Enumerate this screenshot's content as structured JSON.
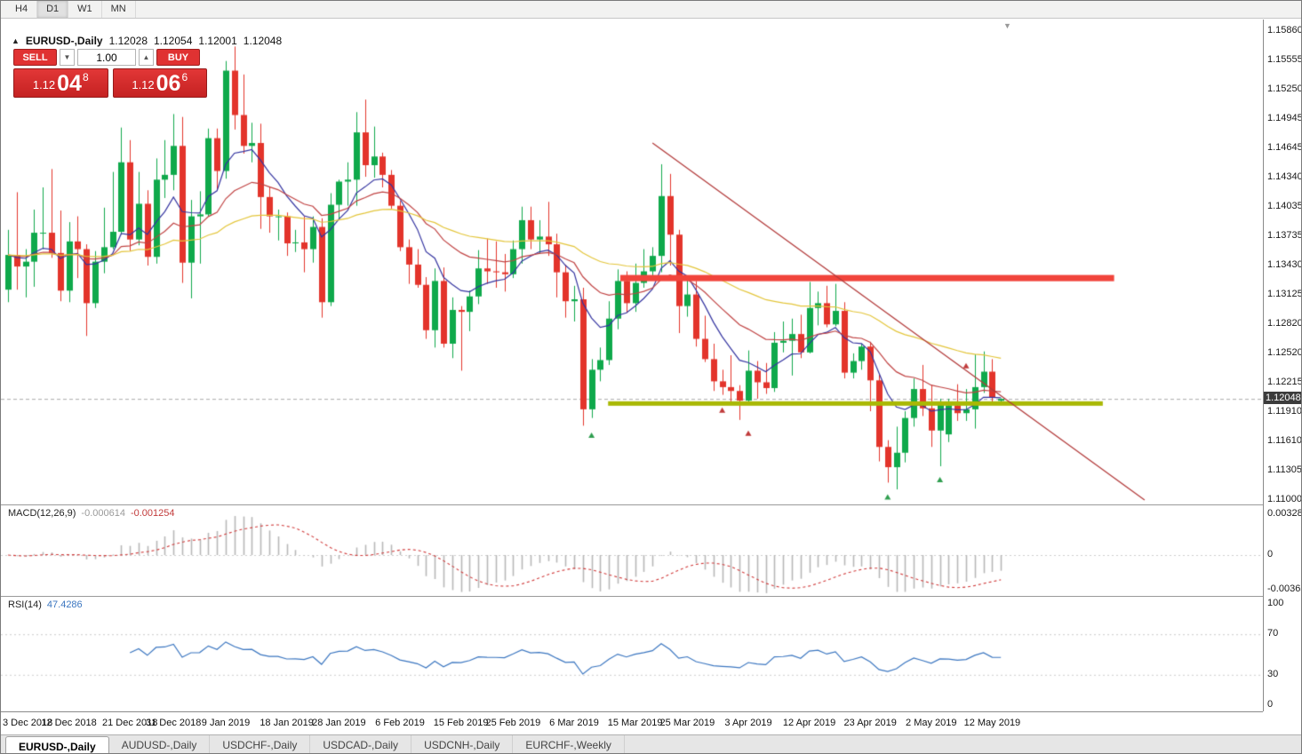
{
  "icons": {
    "collapse": "▲",
    "spinner_down": "▼",
    "spinner_up": "▲",
    "shift_marker": "▼"
  },
  "toolbar": {
    "timeframes": [
      "H4",
      "D1",
      "W1",
      "MN"
    ],
    "active": "D1"
  },
  "chart_header": {
    "symbol": "EURUSD-,Daily",
    "open": "1.12028",
    "high": "1.12054",
    "low": "1.12001",
    "close": "1.12048"
  },
  "trade_panel": {
    "sell_label": "SELL",
    "buy_label": "BUY",
    "volume": "1.00",
    "sell_price": {
      "big": "1.12",
      "mid": "04",
      "sup": "8"
    },
    "buy_price": {
      "big": "1.12",
      "mid": "06",
      "sup": "6"
    }
  },
  "price_axis": {
    "labels": [
      "1.15860",
      "1.15555",
      "1.15250",
      "1.14945",
      "1.14645",
      "1.14340",
      "1.14035",
      "1.13735",
      "1.13430",
      "1.13125",
      "1.12820",
      "1.12520",
      "1.12215",
      "1.11910",
      "1.11610",
      "1.11305",
      "1.11000"
    ],
    "current": "1.12048"
  },
  "date_axis": [
    {
      "label": "3 Dec 2018",
      "i": 0
    },
    {
      "label": "12 Dec 2018",
      "i": 7
    },
    {
      "label": "21 Dec 2018",
      "i": 14
    },
    {
      "label": "31 Dec 2018",
      "i": 19
    },
    {
      "label": "9 Jan 2019",
      "i": 25
    },
    {
      "label": "18 Jan 2019",
      "i": 32
    },
    {
      "label": "28 Jan 2019",
      "i": 38
    },
    {
      "label": "6 Feb 2019",
      "i": 45
    },
    {
      "label": "15 Feb 2019",
      "i": 52
    },
    {
      "label": "25 Feb 2019",
      "i": 58
    },
    {
      "label": "6 Mar 2019",
      "i": 65
    },
    {
      "label": "15 Mar 2019",
      "i": 72
    },
    {
      "label": "25 Mar 2019",
      "i": 78
    },
    {
      "label": "3 Apr 2019",
      "i": 85
    },
    {
      "label": "12 Apr 2019",
      "i": 92
    },
    {
      "label": "23 Apr 2019",
      "i": 99
    },
    {
      "label": "2 May 2019",
      "i": 106
    },
    {
      "label": "12 May 2019",
      "i": 113
    }
  ],
  "macd_panel": {
    "title": "MACD(12,26,9)",
    "value_main": "-0.000614",
    "value_signal": "-0.001254",
    "axis": [
      "0.003287",
      "0",
      "-0.003652"
    ]
  },
  "rsi_panel": {
    "title": "RSI(14)",
    "value": "47.4286",
    "axis": [
      "100",
      "70",
      "30",
      "0"
    ]
  },
  "symbol_tabs": [
    "EURUSD-,Daily",
    "AUDUSD-,Daily",
    "USDCHF-,Daily",
    "USDCAD-,Daily",
    "USDCNH-,Daily",
    "EURCHF-,Weekly"
  ],
  "active_tab_index": 0,
  "chart_data": {
    "type": "candlestick",
    "symbol": "EURUSD",
    "timeframe": "Daily",
    "price_range": [
      1.11,
      1.1586
    ],
    "colors": {
      "bull": "#0fa94b",
      "bear": "#e3342b",
      "ma_fast": "#3434a0",
      "ma_mid": "#c04343",
      "ma_slow": "#e3c53a",
      "bid_line": "#a8a8a8",
      "macd_histogram": "#b8b8b8",
      "macd_signal": "#d03a3a",
      "rsi_line": "#3b76c0",
      "grid_dotted": "#cccccc"
    },
    "candles": [
      [
        1.1318,
        1.138,
        1.1305,
        1.1354
      ],
      [
        1.1354,
        1.1419,
        1.1318,
        1.1342
      ],
      [
        1.1342,
        1.136,
        1.131,
        1.1347
      ],
      [
        1.1347,
        1.1401,
        1.1321,
        1.1377
      ],
      [
        1.1377,
        1.1424,
        1.136,
        1.1377
      ],
      [
        1.1377,
        1.1443,
        1.1351,
        1.1356
      ],
      [
        1.1356,
        1.14,
        1.1306,
        1.1317
      ],
      [
        1.1317,
        1.1388,
        1.1305,
        1.1368
      ],
      [
        1.1368,
        1.1394,
        1.133,
        1.136
      ],
      [
        1.136,
        1.1365,
        1.127,
        1.1304
      ],
      [
        1.1304,
        1.1358,
        1.1299,
        1.1347
      ],
      [
        1.1347,
        1.1403,
        1.1335,
        1.1362
      ],
      [
        1.1362,
        1.144,
        1.136,
        1.1378
      ],
      [
        1.1378,
        1.1486,
        1.1375,
        1.145
      ],
      [
        1.145,
        1.1473,
        1.1358,
        1.137
      ],
      [
        1.137,
        1.144,
        1.1364,
        1.1407
      ],
      [
        1.1407,
        1.1421,
        1.1343,
        1.1352
      ],
      [
        1.1352,
        1.1454,
        1.1345,
        1.1432
      ],
      [
        1.1432,
        1.1473,
        1.1413,
        1.1437
      ],
      [
        1.1437,
        1.15,
        1.1421,
        1.1467
      ],
      [
        1.1467,
        1.1497,
        1.1325,
        1.1346
      ],
      [
        1.1346,
        1.1411,
        1.1309,
        1.1394
      ],
      [
        1.1394,
        1.142,
        1.1345,
        1.1396
      ],
      [
        1.1396,
        1.1485,
        1.1394,
        1.1475
      ],
      [
        1.1475,
        1.1485,
        1.1422,
        1.1441
      ],
      [
        1.1441,
        1.1555,
        1.1433,
        1.1545
      ],
      [
        1.1545,
        1.157,
        1.1484,
        1.1499
      ],
      [
        1.1499,
        1.1541,
        1.1459,
        1.1467
      ],
      [
        1.1467,
        1.1491,
        1.145,
        1.147
      ],
      [
        1.147,
        1.149,
        1.1381,
        1.1414
      ],
      [
        1.1414,
        1.1425,
        1.1377,
        1.1394
      ],
      [
        1.1394,
        1.1401,
        1.1369,
        1.1394
      ],
      [
        1.1394,
        1.1398,
        1.1353,
        1.1366
      ],
      [
        1.1366,
        1.138,
        1.1357,
        1.1367
      ],
      [
        1.1367,
        1.1394,
        1.1336,
        1.136
      ],
      [
        1.136,
        1.1394,
        1.1346,
        1.1383
      ],
      [
        1.1383,
        1.1392,
        1.1289,
        1.1305
      ],
      [
        1.1305,
        1.1418,
        1.1301,
        1.1406
      ],
      [
        1.1406,
        1.1432,
        1.139,
        1.143
      ],
      [
        1.143,
        1.145,
        1.1405,
        1.1432
      ],
      [
        1.1432,
        1.1502,
        1.1405,
        1.1481
      ],
      [
        1.1481,
        1.1515,
        1.1435,
        1.1447
      ],
      [
        1.1447,
        1.1487,
        1.1434,
        1.1456
      ],
      [
        1.1456,
        1.146,
        1.1424,
        1.1437
      ],
      [
        1.1437,
        1.1442,
        1.1402,
        1.1405
      ],
      [
        1.1405,
        1.141,
        1.1358,
        1.1362
      ],
      [
        1.1362,
        1.137,
        1.1324,
        1.1344
      ],
      [
        1.1344,
        1.136,
        1.132,
        1.1323
      ],
      [
        1.1323,
        1.1331,
        1.1267,
        1.1276
      ],
      [
        1.1276,
        1.134,
        1.1258,
        1.1327
      ],
      [
        1.1327,
        1.1341,
        1.1258,
        1.1262
      ],
      [
        1.1262,
        1.131,
        1.1247,
        1.1297
      ],
      [
        1.1297,
        1.1301,
        1.1234,
        1.1295
      ],
      [
        1.1295,
        1.1317,
        1.1275,
        1.1311
      ],
      [
        1.1311,
        1.1359,
        1.1303,
        1.134
      ],
      [
        1.134,
        1.1371,
        1.1324,
        1.1337
      ],
      [
        1.1337,
        1.1368,
        1.132,
        1.1336
      ],
      [
        1.1336,
        1.1355,
        1.1316,
        1.1334
      ],
      [
        1.1334,
        1.1369,
        1.133,
        1.136
      ],
      [
        1.136,
        1.1404,
        1.1345,
        1.139
      ],
      [
        1.139,
        1.1404,
        1.136,
        1.137
      ],
      [
        1.137,
        1.139,
        1.1355,
        1.1373
      ],
      [
        1.1373,
        1.1409,
        1.1353,
        1.1365
      ],
      [
        1.1365,
        1.1376,
        1.131,
        1.1336
      ],
      [
        1.1336,
        1.1344,
        1.1289,
        1.1306
      ],
      [
        1.1306,
        1.1322,
        1.1285,
        1.1308
      ],
      [
        1.1308,
        1.132,
        1.1177,
        1.1194
      ],
      [
        1.1194,
        1.1246,
        1.1185,
        1.1235
      ],
      [
        1.1235,
        1.1258,
        1.1223,
        1.1245
      ],
      [
        1.1245,
        1.1306,
        1.124,
        1.1288
      ],
      [
        1.1288,
        1.1339,
        1.1277,
        1.1327
      ],
      [
        1.1327,
        1.1337,
        1.1294,
        1.1304
      ],
      [
        1.1304,
        1.1345,
        1.1295,
        1.1325
      ],
      [
        1.1325,
        1.136,
        1.132,
        1.1337
      ],
      [
        1.1337,
        1.1362,
        1.1332,
        1.1353
      ],
      [
        1.1353,
        1.1448,
        1.1336,
        1.1415
      ],
      [
        1.1415,
        1.1438,
        1.1343,
        1.1375
      ],
      [
        1.1375,
        1.138,
        1.1273,
        1.1301
      ],
      [
        1.1301,
        1.133,
        1.129,
        1.1313
      ],
      [
        1.1313,
        1.1327,
        1.1259,
        1.1267
      ],
      [
        1.1267,
        1.1291,
        1.1243,
        1.1246
      ],
      [
        1.1246,
        1.1262,
        1.1213,
        1.1223
      ],
      [
        1.1223,
        1.1235,
        1.1209,
        1.1217
      ],
      [
        1.1217,
        1.125,
        1.1199,
        1.1213
      ],
      [
        1.1213,
        1.1219,
        1.1183,
        1.1203
      ],
      [
        1.1203,
        1.1255,
        1.12,
        1.1234
      ],
      [
        1.1234,
        1.1244,
        1.1205,
        1.1222
      ],
      [
        1.1222,
        1.1242,
        1.121,
        1.1216
      ],
      [
        1.1216,
        1.1274,
        1.1212,
        1.1263
      ],
      [
        1.1263,
        1.1285,
        1.1253,
        1.1265
      ],
      [
        1.1265,
        1.1288,
        1.1229,
        1.1272
      ],
      [
        1.1272,
        1.1292,
        1.1247,
        1.1253
      ],
      [
        1.1253,
        1.1326,
        1.1252,
        1.1299
      ],
      [
        1.1299,
        1.1316,
        1.1281,
        1.1304
      ],
      [
        1.1304,
        1.1322,
        1.1279,
        1.1282
      ],
      [
        1.1282,
        1.1324,
        1.128,
        1.1296
      ],
      [
        1.1296,
        1.1305,
        1.1226,
        1.1232
      ],
      [
        1.1232,
        1.1252,
        1.1226,
        1.1244
      ],
      [
        1.1244,
        1.1262,
        1.1235,
        1.1259
      ],
      [
        1.1259,
        1.1264,
        1.1192,
        1.1224
      ],
      [
        1.1224,
        1.123,
        1.114,
        1.1155
      ],
      [
        1.1155,
        1.1162,
        1.1118,
        1.1134
      ],
      [
        1.1134,
        1.1176,
        1.1111,
        1.1149
      ],
      [
        1.1149,
        1.1192,
        1.1139,
        1.1185
      ],
      [
        1.1185,
        1.1226,
        1.1176,
        1.1215
      ],
      [
        1.1215,
        1.124,
        1.1187,
        1.1195
      ],
      [
        1.1195,
        1.1219,
        1.1155,
        1.1172
      ],
      [
        1.1172,
        1.1205,
        1.1135,
        1.1199
      ],
      [
        1.1168,
        1.1205,
        1.116,
        1.1198
      ],
      [
        1.1198,
        1.122,
        1.1182,
        1.119
      ],
      [
        1.119,
        1.1215,
        1.1182,
        1.1194
      ],
      [
        1.1194,
        1.1251,
        1.1174,
        1.1217
      ],
      [
        1.1217,
        1.1254,
        1.1211,
        1.1233
      ],
      [
        1.1233,
        1.1246,
        1.12,
        1.1206
      ],
      [
        1.12028,
        1.12054,
        1.12001,
        1.12048
      ]
    ],
    "moving_averages": [
      {
        "period": 8,
        "color_key": "ma_fast"
      },
      {
        "period": 20,
        "color_key": "ma_mid"
      },
      {
        "period": 50,
        "color_key": "ma_slow"
      }
    ],
    "objects": {
      "trendline": {
        "i1": 74,
        "p1": 1.147,
        "i2": 130.5,
        "p2": 1.11,
        "color": "#b23a3a"
      },
      "resistance": {
        "i1": 70.3,
        "i2": 127,
        "price": 1.133,
        "color": "#f1443b",
        "thickness": 7
      },
      "support": {
        "i1": 68.9,
        "i2": 125.7,
        "price": 1.12,
        "color": "#a9b804",
        "thickness": 5
      }
    },
    "arrows": [
      {
        "i": 67,
        "p": 1.117,
        "color": "#2f9e4f"
      },
      {
        "i": 82,
        "p": 1.1196,
        "color": "#c03a3a"
      },
      {
        "i": 85,
        "p": 1.1172,
        "color": "#c03a3a"
      },
      {
        "i": 101,
        "p": 1.1106,
        "color": "#2f9e4f"
      },
      {
        "i": 107,
        "p": 1.1124,
        "color": "#2f9e4f"
      },
      {
        "i": 110,
        "p": 1.1242,
        "color": "#c03a3a"
      }
    ],
    "bid_price": 1.12048,
    "macd": {
      "fast": 12,
      "slow": 26,
      "signal": 9,
      "last_main": -0.000614,
      "last_signal": -0.001254
    },
    "rsi": {
      "period": 14,
      "levels": [
        70,
        30
      ],
      "last": 47.4286
    }
  }
}
